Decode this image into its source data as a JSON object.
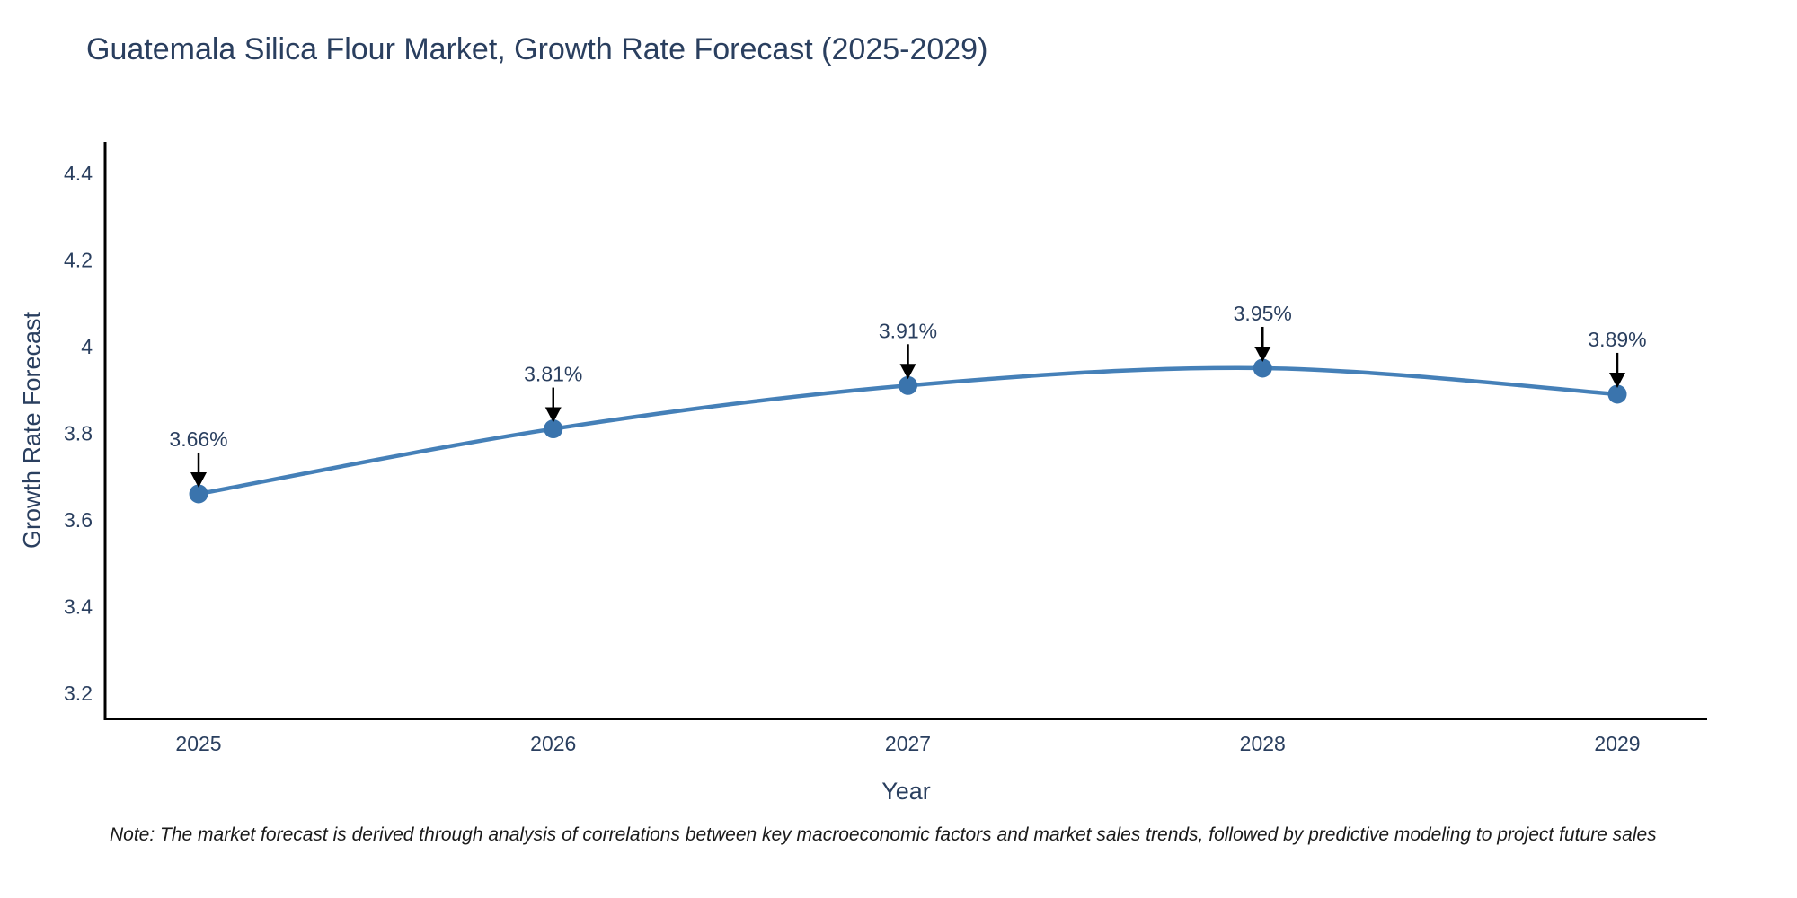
{
  "page": {
    "note": "Note: The market forecast is derived through analysis of correlations between key macroeconomic factors and market sales trends, followed by predictive modeling to project future sales"
  },
  "chart_data": {
    "type": "line",
    "title": "Guatemala Silica Flour Market, Growth Rate Forecast (2025-2029)",
    "x": [
      2025,
      2026,
      2027,
      2028,
      2029
    ],
    "x_tick_labels": [
      "2025",
      "2026",
      "2027",
      "2028",
      "2029"
    ],
    "series": [
      {
        "name": "Growth Rate Forecast",
        "values": [
          3.66,
          3.81,
          3.91,
          3.95,
          3.89
        ]
      }
    ],
    "point_labels": [
      "3.66%",
      "3.81%",
      "3.91%",
      "3.95%",
      "3.89%"
    ],
    "xlabel": "Year",
    "ylabel": "Growth Rate Forecast",
    "yticks": [
      3.2,
      3.4,
      3.6,
      3.8,
      4,
      4.2,
      4.4
    ],
    "ytick_labels": [
      "3.2",
      "3.4",
      "3.6",
      "3.8",
      "4",
      "4.2",
      "4.4"
    ],
    "ylim": [
      3.141,
      4.472
    ],
    "xlim": [
      2024.7365,
      2029.2533
    ],
    "line_shape": "spline",
    "grid": false,
    "legend_position": "none",
    "annotation_style": "value label with downward arrow onto each marker",
    "colors": {
      "line": "#4580b8",
      "marker": "#3a74ad",
      "annotation_arrow": "#000000",
      "axis": "#000000",
      "text": "#2a3f5f",
      "note_text": "#1a1a1a"
    }
  }
}
